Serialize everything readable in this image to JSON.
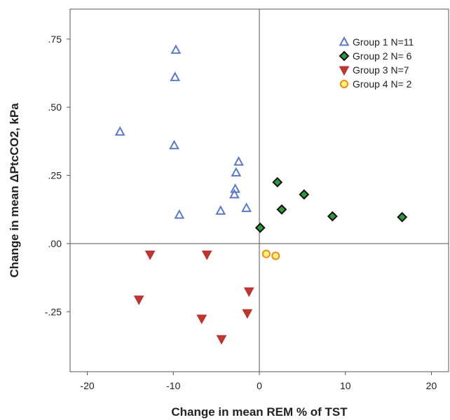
{
  "chart_data": {
    "type": "scatter",
    "xlabel": "Change in mean REM % of TST",
    "ylabel": "Change in mean ΔPtcCO2, kPa",
    "xlim": [
      -22,
      22
    ],
    "ylim": [
      -0.47,
      0.86
    ],
    "x_ticks": [
      {
        "value": -20,
        "label": "-20"
      },
      {
        "value": -10,
        "label": "-10"
      },
      {
        "value": 0,
        "label": "0"
      },
      {
        "value": 10,
        "label": "10"
      },
      {
        "value": 20,
        "label": "20"
      }
    ],
    "y_ticks": [
      {
        "value": 0.75,
        "label": ".75"
      },
      {
        "value": 0.5,
        "label": ".50"
      },
      {
        "value": 0.25,
        "label": ".25"
      },
      {
        "value": 0.0,
        "label": ".00"
      },
      {
        "value": -0.25,
        "label": "-.25"
      }
    ],
    "reference_lines": {
      "x": 0,
      "y": 0
    },
    "grid": false,
    "legend_position": "top-right",
    "series": [
      {
        "name": "Group 1 N=11",
        "marker": "triangle-up",
        "color": "#5b79c7",
        "fill": "none",
        "points": [
          [
            -9.7,
            0.71
          ],
          [
            -9.8,
            0.61
          ],
          [
            -16.2,
            0.41
          ],
          [
            -9.9,
            0.36
          ],
          [
            -2.4,
            0.3
          ],
          [
            -2.7,
            0.26
          ],
          [
            -2.8,
            0.2
          ],
          [
            -2.9,
            0.18
          ],
          [
            -1.5,
            0.13
          ],
          [
            -4.5,
            0.12
          ],
          [
            -9.3,
            0.105
          ]
        ]
      },
      {
        "name": "Group 2 N= 6",
        "marker": "diamond",
        "color": "#111111",
        "fill": "#2e9a3c",
        "points": [
          [
            2.1,
            0.225
          ],
          [
            2.6,
            0.125
          ],
          [
            5.2,
            0.18
          ],
          [
            8.5,
            0.1
          ],
          [
            16.6,
            0.097
          ],
          [
            0.1,
            0.058
          ]
        ]
      },
      {
        "name": "Group 3 N=7",
        "marker": "triangle-down",
        "color": "#b83434",
        "fill": "#c0392b",
        "points": [
          [
            -12.7,
            -0.04
          ],
          [
            -6.1,
            -0.04
          ],
          [
            -14.0,
            -0.205
          ],
          [
            -1.2,
            -0.175
          ],
          [
            -1.4,
            -0.255
          ],
          [
            -6.7,
            -0.275
          ],
          [
            -4.4,
            -0.35
          ]
        ]
      },
      {
        "name": "Group 4 N= 2",
        "marker": "circle",
        "color": "#f08c1e",
        "fill": "#f7f27a",
        "points": [
          [
            0.8,
            -0.038
          ],
          [
            1.9,
            -0.045
          ]
        ]
      }
    ]
  }
}
